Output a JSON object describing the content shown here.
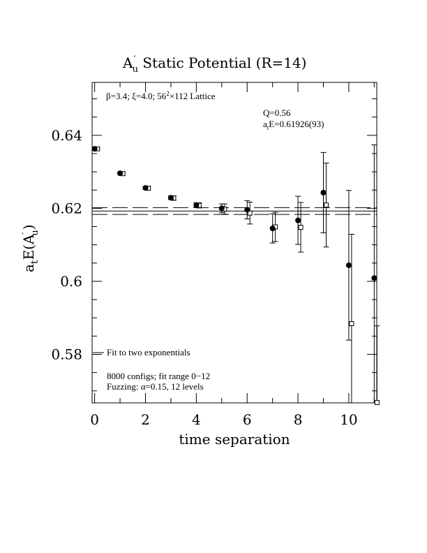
{
  "chart_data": {
    "type": "scatter",
    "title_main": "A",
    "title_prime": "′",
    "title_sub": "u",
    "title_rest": " Static Potential (R=14)",
    "xlabel": "time separation",
    "ylabel_pre": "a",
    "ylabel_sub1": "t",
    "ylabel_mid": "E(A",
    "ylabel_prime": "′",
    "ylabel_sub2": "u",
    "ylabel_post": ")",
    "xlim": [
      -0.1,
      11.1
    ],
    "ylim": [
      0.5667,
      0.6545
    ],
    "xticks": [
      0,
      2,
      4,
      6,
      8,
      10
    ],
    "xtick_labels": [
      "0",
      "2",
      "4",
      "6",
      "8",
      "10"
    ],
    "yticks": [
      0.58,
      0.6,
      0.62,
      0.64
    ],
    "ytick_labels": [
      "0.58",
      "0.6",
      "0.62",
      "0.64"
    ],
    "annotations": {
      "lattice_beta": "β=3.4; ",
      "lattice_xi": "ξ=4.0; 56",
      "lattice_exp": "2",
      "lattice_rest": "×112 Lattice",
      "q_value": "Q=0.56",
      "energy_pre": "a",
      "energy_sub": "t",
      "energy_rest": "E=0.61926(93)",
      "fit_type": "Fit to two exponentials",
      "configs": "8000 configs; fit range 0−12",
      "fuzzing": "Fuzzing: α=0.15, 12 levels"
    },
    "fit": {
      "value": 0.61926,
      "error": 0.00093
    },
    "series": [
      {
        "marker": "filled-circle",
        "points": [
          {
            "x": 0,
            "y": 0.6363,
            "err": 0.0002
          },
          {
            "x": 1,
            "y": 0.6296,
            "err": 0.0003
          },
          {
            "x": 2,
            "y": 0.6256,
            "err": 0.0004
          },
          {
            "x": 3,
            "y": 0.6229,
            "err": 0.0005
          },
          {
            "x": 4,
            "y": 0.6209,
            "err": 0.0006
          },
          {
            "x": 5,
            "y": 0.62,
            "err": 0.0012
          },
          {
            "x": 6,
            "y": 0.6196,
            "err": 0.0025
          },
          {
            "x": 7,
            "y": 0.6145,
            "err": 0.004
          },
          {
            "x": 8,
            "y": 0.6167,
            "err": 0.0066
          },
          {
            "x": 9,
            "y": 0.6243,
            "err": 0.011
          },
          {
            "x": 10,
            "y": 0.6044,
            "err": 0.0205
          },
          {
            "x": 11,
            "y": 0.6009,
            "err": 0.0365
          }
        ]
      },
      {
        "marker": "open-square",
        "points": [
          {
            "x": 0,
            "y": 0.6363,
            "err": 0.0003
          },
          {
            "x": 1,
            "y": 0.6295,
            "err": 0.0004
          },
          {
            "x": 2,
            "y": 0.6255,
            "err": 0.0005
          },
          {
            "x": 3,
            "y": 0.6228,
            "err": 0.0006
          },
          {
            "x": 4,
            "y": 0.6208,
            "err": 0.0007
          },
          {
            "x": 5,
            "y": 0.6198,
            "err": 0.0014
          },
          {
            "x": 6,
            "y": 0.6187,
            "err": 0.003
          },
          {
            "x": 7,
            "y": 0.6149,
            "err": 0.004
          },
          {
            "x": 8,
            "y": 0.6148,
            "err": 0.0068
          },
          {
            "x": 9,
            "y": 0.6209,
            "err": 0.0115
          },
          {
            "x": 10,
            "y": 0.5884,
            "err": 0.0245
          },
          {
            "x": 11,
            "y": 0.5668,
            "err": 0.021
          }
        ]
      }
    ]
  }
}
